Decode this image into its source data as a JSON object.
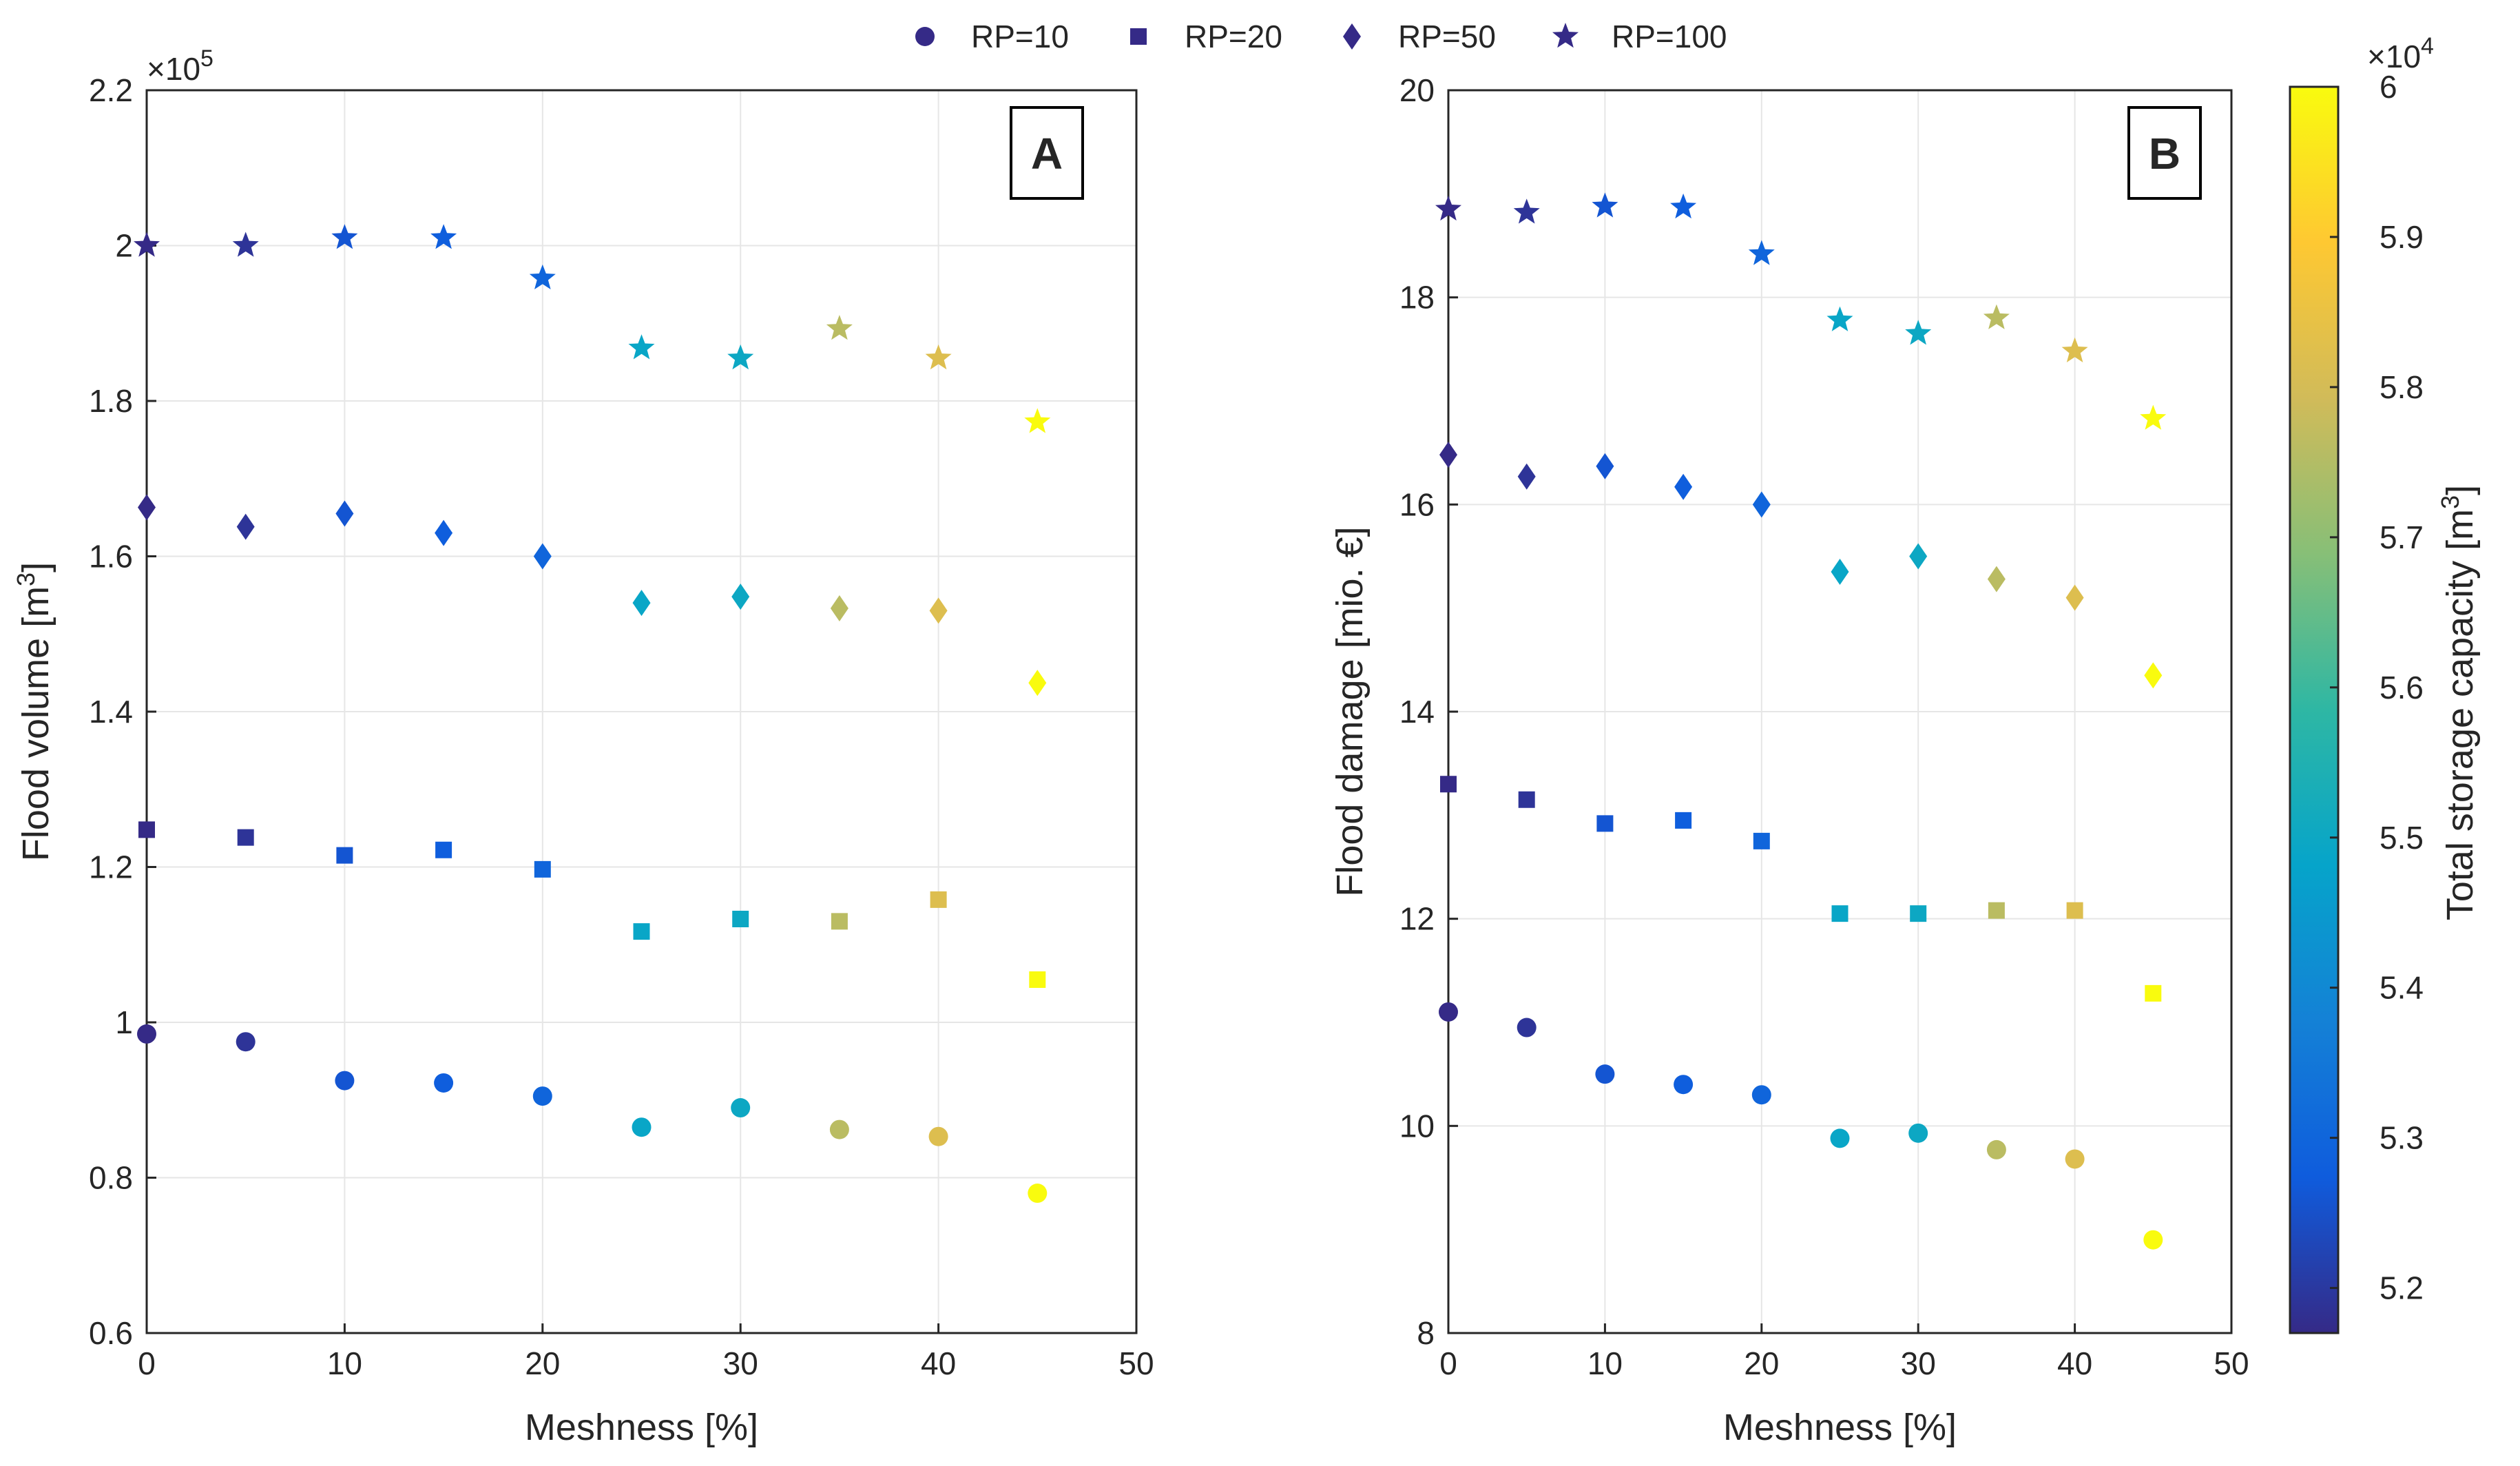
{
  "chart_data": {
    "type": "scatter",
    "legend": {
      "position": "top-center",
      "entries": [
        {
          "key": "rp10",
          "label": "RP=10",
          "marker": "circle"
        },
        {
          "key": "rp20",
          "label": "RP=20",
          "marker": "square"
        },
        {
          "key": "rp50",
          "label": "RP=50",
          "marker": "diamond"
        },
        {
          "key": "rp100",
          "label": "RP=100",
          "marker": "star"
        }
      ],
      "marker_color": "#352a87"
    },
    "meshness": [
      0,
      5,
      10,
      15,
      20,
      25,
      30,
      35,
      40,
      45
    ],
    "storage_capacity": [
      51700,
      51900,
      52600,
      52800,
      53000,
      54900,
      55000,
      57600,
      58200,
      60000
    ],
    "colorbar": {
      "label": "Total storage capacity [m",
      "label_sup": "3",
      "label_end": "]",
      "range": [
        51700,
        60000
      ],
      "ticks": [
        52000,
        53000,
        54000,
        55000,
        56000,
        57000,
        58000,
        59000,
        60000
      ],
      "tick_labels": [
        "5.2",
        "5.3",
        "5.4",
        "5.5",
        "5.6",
        "5.7",
        "5.8",
        "5.9",
        "6"
      ],
      "multiplier_base": "×10",
      "multiplier_exp": "4",
      "colormap": "parula"
    },
    "panels": [
      {
        "letter": "A",
        "xlabel": "Meshness [%]",
        "ylabel": "Flood volume [m",
        "ylabel_sup": "3",
        "ylabel_end": "]",
        "xlim": [
          0,
          50
        ],
        "ylim": [
          0.6,
          2.2
        ],
        "xticks": [
          0,
          10,
          20,
          30,
          40,
          50
        ],
        "xtick_labels": [
          "0",
          "10",
          "20",
          "30",
          "40",
          "50"
        ],
        "yticks": [
          0.6,
          0.8,
          1.0,
          1.2,
          1.4,
          1.6,
          1.8,
          2.0,
          2.2
        ],
        "ytick_labels": [
          "0.6",
          "0.8",
          "1",
          "1.2",
          "1.4",
          "1.6",
          "1.8",
          "2",
          "2.2"
        ],
        "multiplier_base": "×10",
        "multiplier_exp": "5",
        "grid": true,
        "series": [
          {
            "key": "rp10",
            "name": "RP=10",
            "values": [
              0.985,
              0.975,
              0.925,
              0.922,
              0.905,
              0.865,
              0.89,
              0.862,
              0.853,
              0.78
            ]
          },
          {
            "key": "rp20",
            "name": "RP=20",
            "values": [
              1.248,
              1.238,
              1.215,
              1.222,
              1.197,
              1.117,
              1.133,
              1.13,
              1.158,
              1.055
            ]
          },
          {
            "key": "rp50",
            "name": "RP=50",
            "values": [
              1.663,
              1.638,
              1.655,
              1.63,
              1.6,
              1.54,
              1.548,
              1.533,
              1.53,
              1.437
            ]
          },
          {
            "key": "rp100",
            "name": "RP=100",
            "values": [
              2.0,
              2.0,
              2.01,
              2.01,
              1.958,
              1.868,
              1.855,
              1.893,
              1.855,
              1.773
            ]
          }
        ]
      },
      {
        "letter": "B",
        "xlabel": "Meshness [%]",
        "ylabel": "Flood damage [mio. €]",
        "ylabel_sup": "",
        "ylabel_end": "",
        "xlim": [
          0,
          50
        ],
        "ylim": [
          8,
          20
        ],
        "xticks": [
          0,
          10,
          20,
          30,
          40,
          50
        ],
        "xtick_labels": [
          "0",
          "10",
          "20",
          "30",
          "40",
          "50"
        ],
        "yticks": [
          8,
          10,
          12,
          14,
          16,
          18,
          20
        ],
        "ytick_labels": [
          "8",
          "10",
          "12",
          "14",
          "16",
          "18",
          "20"
        ],
        "multiplier_base": "",
        "multiplier_exp": "",
        "grid": true,
        "series": [
          {
            "key": "rp10",
            "name": "RP=10",
            "values": [
              11.1,
              10.95,
              10.5,
              10.4,
              10.3,
              9.88,
              9.93,
              9.77,
              9.68,
              8.9
            ]
          },
          {
            "key": "rp20",
            "name": "RP=20",
            "values": [
              13.3,
              13.15,
              12.92,
              12.95,
              12.75,
              12.05,
              12.05,
              12.08,
              12.08,
              11.28
            ]
          },
          {
            "key": "rp50",
            "name": "RP=50",
            "values": [
              16.48,
              16.27,
              16.37,
              16.17,
              16.0,
              15.35,
              15.5,
              15.28,
              15.1,
              14.35
            ]
          },
          {
            "key": "rp100",
            "name": "RP=100",
            "values": [
              18.85,
              18.82,
              18.88,
              18.87,
              18.42,
              17.78,
              17.65,
              17.8,
              17.48,
              16.83
            ]
          }
        ]
      }
    ]
  }
}
